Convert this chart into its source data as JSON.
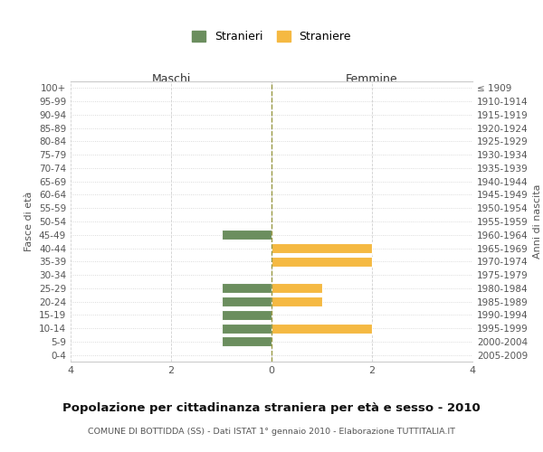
{
  "age_groups": [
    "100+",
    "95-99",
    "90-94",
    "85-89",
    "80-84",
    "75-79",
    "70-74",
    "65-69",
    "60-64",
    "55-59",
    "50-54",
    "45-49",
    "40-44",
    "35-39",
    "30-34",
    "25-29",
    "20-24",
    "15-19",
    "10-14",
    "5-9",
    "0-4"
  ],
  "birth_years": [
    "≤ 1909",
    "1910-1914",
    "1915-1919",
    "1920-1924",
    "1925-1929",
    "1930-1934",
    "1935-1939",
    "1940-1944",
    "1945-1949",
    "1950-1954",
    "1955-1959",
    "1960-1964",
    "1965-1969",
    "1970-1974",
    "1975-1979",
    "1980-1984",
    "1985-1989",
    "1990-1994",
    "1995-1999",
    "2000-2004",
    "2005-2009"
  ],
  "males": [
    0,
    0,
    0,
    0,
    0,
    0,
    0,
    0,
    0,
    0,
    0,
    -1,
    0,
    0,
    0,
    -1,
    -1,
    -1,
    -1,
    -1,
    0
  ],
  "females": [
    0,
    0,
    0,
    0,
    0,
    0,
    0,
    0,
    0,
    0,
    0,
    0,
    2,
    2,
    0,
    1,
    1,
    0,
    2,
    0,
    0
  ],
  "male_color": "#6b8e5e",
  "female_color": "#f5b942",
  "male_label": "Stranieri",
  "female_label": "Straniere",
  "title": "Popolazione per cittadinanza straniera per età e sesso - 2010",
  "subtitle": "COMUNE DI BOTTIDDA (SS) - Dati ISTAT 1° gennaio 2010 - Elaborazione TUTTITALIA.IT",
  "header_left": "Maschi",
  "header_right": "Femmine",
  "ylabel_left": "Fasce di età",
  "ylabel_right": "Anni di nascita",
  "xlim": [
    -4,
    4
  ],
  "xticks": [
    -4,
    -2,
    0,
    2,
    4
  ],
  "xticklabels": [
    "4",
    "2",
    "0",
    "2",
    "4"
  ],
  "background_color": "#ffffff",
  "grid_color": "#d0d0d0",
  "bar_height": 0.75
}
